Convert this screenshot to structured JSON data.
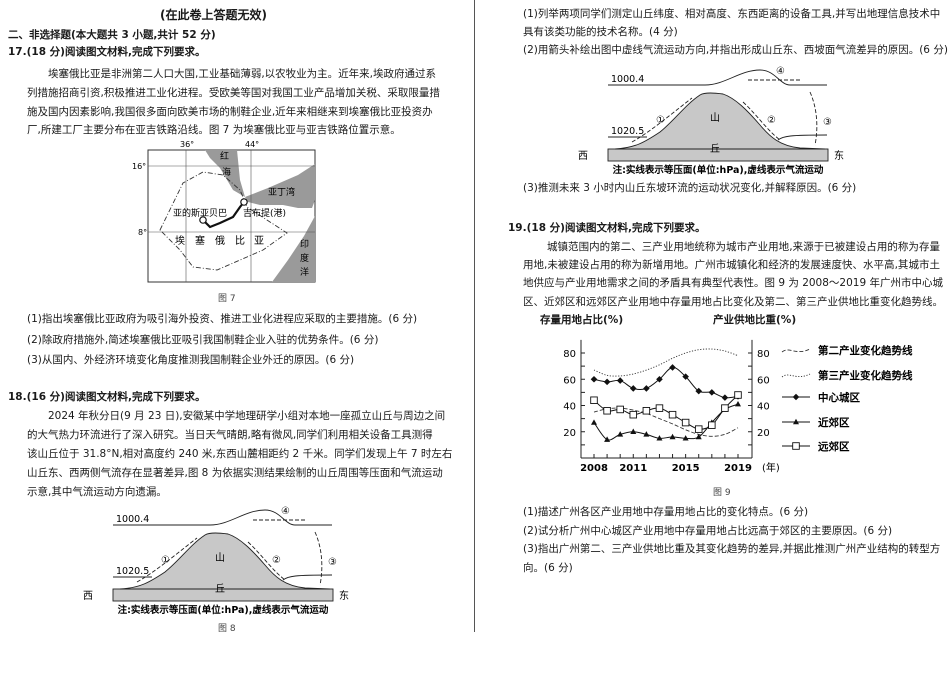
{
  "header": "(在此卷上答题无效)",
  "section_title": "二、非选择题(本大题共 3 小题,共计 52 分)",
  "q17": {
    "title": "17.(18 分)阅读图文材料,完成下列要求。",
    "paragraph": [
      "埃塞俄比亚是非洲第二人口大国,工业基础薄弱,以农牧业为主。近年来,埃政府通过系",
      "列措施招商引资,积极推进工业化进程。受欧美等国对我国工业产品增加关税、采取限量措",
      "施及国内因素影响,我国很多面向欧美市场的制鞋企业,近年来相继来到埃塞俄比亚投资办",
      "厂,所建工厂主要分布在亚吉铁路沿线。图 7 为埃塞俄比亚与亚吉铁路位置示意。"
    ],
    "map": {
      "lon_labels": [
        "36°",
        "44°"
      ],
      "lat_labels": [
        "16°",
        "8°"
      ],
      "red_sea": [
        "红",
        "海"
      ],
      "gulf_of_aden": "亚丁湾",
      "capital": "亚的斯亚贝巴",
      "port": "吉布提(港)",
      "country": [
        "埃",
        "塞",
        "俄",
        "比",
        "亚"
      ],
      "indian_ocean": [
        "印",
        "度",
        "洋"
      ],
      "sea_color": "#9a9a9a"
    },
    "caption": "图 7",
    "questions": [
      "(1)指出埃塞俄比亚政府为吸引海外投资、推进工业化进程应采取的主要措施。(6 分)",
      "(2)除政府措施外,简述埃塞俄比亚吸引我国制鞋企业入驻的优势条件。(6 分)",
      "(3)从国内、外经济环境变化角度推测我国制鞋企业外迁的原因。(6 分)"
    ]
  },
  "q18": {
    "title": "18.(16 分)阅读图文材料,完成下列要求。",
    "paragraph": [
      "2024 年秋分日(9 月 23 日),安徽某中学地理研学小组对本地一座孤立山丘与周边之间",
      "的大气热力环流进行了深入研究。当日天气晴朗,略有微风,同学们利用相关设备工具测得",
      "该山丘位于 31.8°N,相对高度约 240 米,东西山麓相距约 2 千米。同学们发现上午 7 时左右",
      "山丘东、西两侧气流存在显著差异,图 8 为依据实测结果绘制的山丘周围等压面和气流运动",
      "示意,其中气流运动方向遗漏。"
    ],
    "figure": {
      "isobar_upper": "1000.4",
      "isobar_lower": "1020.5",
      "markers": [
        "①",
        "②",
        "③",
        "④"
      ],
      "hill": [
        "山",
        "丘"
      ],
      "west": "西",
      "east": "东",
      "note": "注:实线表示等压面(单位:hPa),虚线表示气流运动",
      "hill_color": "#c8c8c8"
    },
    "caption": "图 8",
    "questions": [
      [
        "(1)列举两项同学们测定山丘纬度、相对高度、东西距离的设备工具,并写出地理信息技术中",
        "具有该类功能的技术名称。(4 分)"
      ],
      [
        "(2)用箭头补绘出图中虚线气流运动方向,并指出形成山丘东、西坡面气流差异的原因。(6 分)"
      ],
      [
        "(3)推测未来 3 小时内山丘东坡环流的运动状况变化,并解释原因。(6 分)"
      ]
    ]
  },
  "q19": {
    "title": "19.(18 分)阅读图文材料,完成下列要求。",
    "paragraph": [
      "城镇范围内的第二、三产业用地统称为城市产业用地,来源于已被建设占用的称为存量",
      "用地,未被建设占用的称为新增用地。广州市城镇化和经济的发展速度快、水平高,其城市土",
      "地供应与产业用地需求之间的矛盾具有典型代表性。图 9 为 2008～2019 年广州市中心城",
      "区、近郊区和远郊区产业用地中存量用地占比变化及第二、第三产业供地比重变化趋势线。"
    ],
    "caption": "图 9",
    "questions": [
      "(1)描述广州各区产业用地中存量用地占比的变化特点。(6 分)",
      "(2)试分析广州中心城区产业用地中存量用地占比远高于郊区的主要原因。(6 分)",
      "(3)指出广州第二、三产业供地比重及其变化趋势的差异,并据此推测广州产业结构的转型方",
      "向。(6 分)"
    ]
  },
  "chart_data": {
    "type": "line",
    "ylabel_left": "存量用地占比(%)",
    "ylabel_right": "产业供地比重(%)",
    "xlabel_unit": "(年)",
    "x": [
      2008,
      2009,
      2010,
      2011,
      2012,
      2013,
      2014,
      2015,
      2016,
      2017,
      2018,
      2019
    ],
    "x_tick_labels": [
      "2008",
      "2011",
      "2015",
      "2019"
    ],
    "y_tick_labels": [
      "20",
      "40",
      "60",
      "80"
    ],
    "ylim": [
      0,
      90
    ],
    "legend_placement": "right",
    "series": [
      {
        "name": "中心城区",
        "marker": "diamond-filled",
        "style": "solid",
        "values": [
          60,
          58,
          59,
          53,
          53,
          60,
          69,
          62,
          51,
          50,
          46,
          47
        ]
      },
      {
        "name": "近郊区",
        "marker": "triangle-filled",
        "style": "solid",
        "values": [
          27,
          14,
          18,
          20,
          18,
          15,
          16,
          15,
          16,
          27,
          37,
          41
        ]
      },
      {
        "name": "远郊区",
        "marker": "square-open",
        "style": "solid",
        "values": [
          44,
          36,
          37,
          33,
          36,
          38,
          33,
          27,
          22,
          25,
          38,
          48
        ]
      }
    ],
    "trend_lines": [
      {
        "name": "第二产业变化趋势线",
        "style": "dashed",
        "x": [
          2008,
          2009,
          2010,
          2011,
          2012,
          2013,
          2014,
          2015,
          2016,
          2017,
          2018,
          2019
        ],
        "values": [
          35,
          37.5,
          38,
          36.5,
          34,
          30,
          26,
          21.5,
          18,
          16.5,
          18,
          23
        ]
      },
      {
        "name": "第三产业变化趋势线",
        "style": "dotted",
        "x": [
          2008,
          2009,
          2010,
          2011,
          2012,
          2013,
          2014,
          2015,
          2016,
          2017,
          2018,
          2019
        ],
        "values": [
          67,
          63,
          62.5,
          64,
          67,
          71,
          76,
          80,
          82.5,
          83,
          81.5,
          78
        ]
      }
    ]
  }
}
